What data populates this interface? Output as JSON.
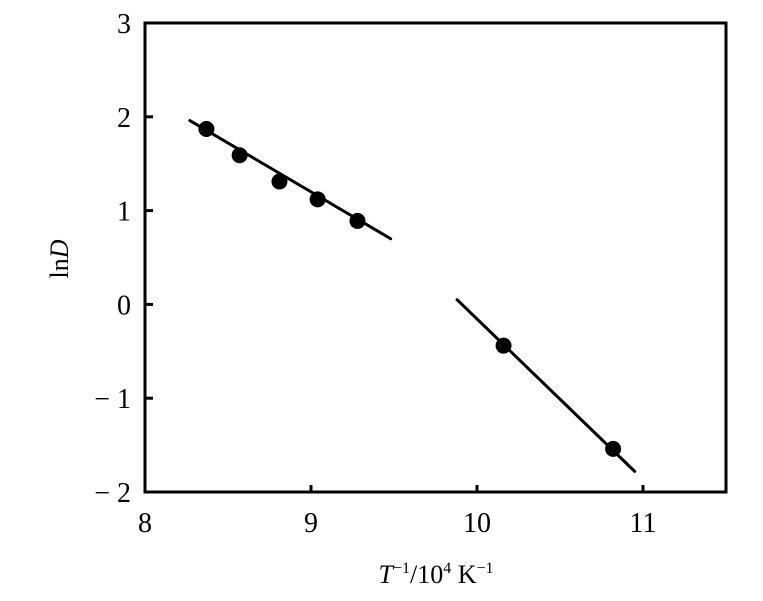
{
  "chart_data": {
    "type": "scatter",
    "title": "",
    "xlabel": {
      "T": "T",
      "sup1": "−1",
      "mid": "/10",
      "sup2": "4",
      "unit": "K",
      "sup3": "−1"
    },
    "ylabel": {
      "ln": "ln",
      "D": "D"
    },
    "xlim": [
      8,
      11.5
    ],
    "ylim": [
      -2,
      3
    ],
    "x_ticks": [
      8,
      9,
      10,
      11
    ],
    "y_ticks": [
      3,
      2,
      1,
      0,
      -1,
      -2
    ],
    "x_tick_labels": [
      "8",
      "9",
      "10",
      "11"
    ],
    "y_tick_labels": [
      "3",
      "2",
      "1",
      "0",
      "− 1",
      "− 2"
    ],
    "grid": false,
    "series": [
      {
        "points": [
          {
            "x": 8.37,
            "y": 1.87
          },
          {
            "x": 8.57,
            "y": 1.59
          },
          {
            "x": 8.81,
            "y": 1.31
          },
          {
            "x": 9.04,
            "y": 1.12
          },
          {
            "x": 9.28,
            "y": 0.89
          }
        ],
        "fit_line": [
          {
            "x": 8.27,
            "y": 1.96
          },
          {
            "x": 9.48,
            "y": 0.7
          }
        ]
      },
      {
        "points": [
          {
            "x": 10.16,
            "y": -0.44
          },
          {
            "x": 10.82,
            "y": -1.54
          }
        ],
        "fit_line": [
          {
            "x": 9.88,
            "y": 0.05
          },
          {
            "x": 10.95,
            "y": -1.78
          }
        ]
      }
    ]
  }
}
